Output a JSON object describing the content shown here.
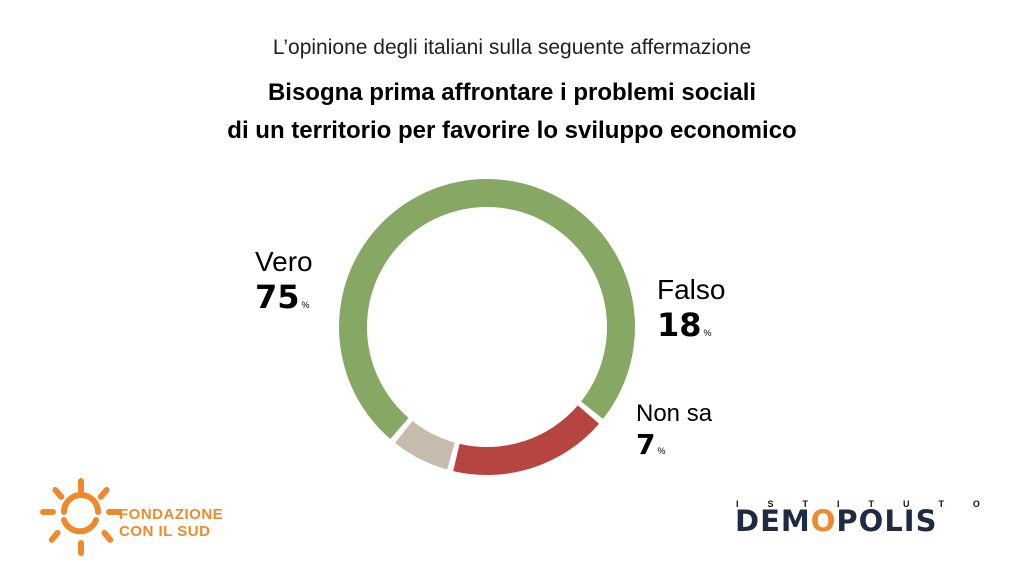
{
  "header": {
    "subtitle": "L’opinione degli italiani sulla seguente affermazione",
    "title_line1": "Bisogna prima affrontare i problemi sociali",
    "title_line2": "di un territorio per favorire lo sviluppo economico"
  },
  "chart_data": {
    "type": "pie",
    "donut": true,
    "categories": [
      "Vero",
      "Falso",
      "Non sa"
    ],
    "values": [
      75,
      18,
      7
    ],
    "unit": "%",
    "colors": [
      "#87a864",
      "#b64541",
      "#c6bcad"
    ]
  },
  "logos": {
    "fondazione_line1": "FONDAZIONE",
    "fondazione_line2": "CON IL SUD",
    "fondazione_color": "#ee8a2b",
    "demopolis_top": "ISTITUTO",
    "demopolis_main": "DEMOPOLIS",
    "demopolis_accent": "#ee8a2b"
  }
}
